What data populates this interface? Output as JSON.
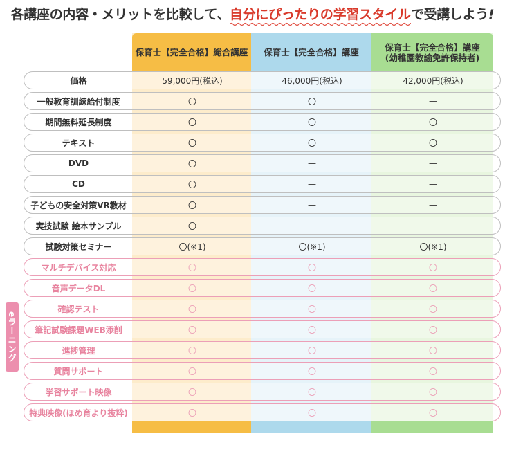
{
  "heading": {
    "prefix": "各講座の内容・メリットを比較して、",
    "highlight": "自分にぴったりの学習スタイル",
    "suffix": "で受講しよう",
    "tail": "!"
  },
  "plans": [
    {
      "line1": "保育士【完全合格】総合講座",
      "line2": ""
    },
    {
      "line1": "保育士【完全合格】講座",
      "line2": ""
    },
    {
      "line1": "保育士【完全合格】講座",
      "line2": "(幼稚園教諭免許保持者)"
    }
  ],
  "elearning_tab": "eラーニング",
  "rows": [
    {
      "label": "価格",
      "c1": "59,000円(税込)",
      "c2": "46,000円(税込)",
      "c3": "42,000円(税込)"
    },
    {
      "label": "一般教育訓練給付制度",
      "c1": "〇",
      "c2": "〇",
      "c3": "—"
    },
    {
      "label": "期間無料延長制度",
      "c1": "〇",
      "c2": "〇",
      "c3": "〇"
    },
    {
      "label": "テキスト",
      "c1": "〇",
      "c2": "〇",
      "c3": "〇"
    },
    {
      "label": "DVD",
      "c1": "〇",
      "c2": "—",
      "c3": "—"
    },
    {
      "label": "CD",
      "c1": "〇",
      "c2": "—",
      "c3": "—"
    },
    {
      "label": "子どもの安全対策VR教材",
      "c1": "〇",
      "c2": "—",
      "c3": "—"
    },
    {
      "label": "実技試験 絵本サンプル",
      "c1": "〇",
      "c2": "—",
      "c3": "—"
    },
    {
      "label": "試験対策セミナー",
      "c1": "〇(※1)",
      "c2": "〇(※1)",
      "c3": "〇(※1)"
    },
    {
      "label": "マルチデバイス対応",
      "c1": "〇",
      "c2": "〇",
      "c3": "〇"
    },
    {
      "label": "音声データDL",
      "c1": "〇",
      "c2": "〇",
      "c3": "〇"
    },
    {
      "label": "確認テスト",
      "c1": "〇",
      "c2": "〇",
      "c3": "〇"
    },
    {
      "label": "筆記試験課題WEB添削",
      "c1": "〇",
      "c2": "〇",
      "c3": "〇"
    },
    {
      "label": "進捗管理",
      "c1": "〇",
      "c2": "〇",
      "c3": "〇"
    },
    {
      "label": "質問サポート",
      "c1": "〇",
      "c2": "〇",
      "c3": "〇"
    },
    {
      "label": "学習サポート映像",
      "c1": "〇",
      "c2": "〇",
      "c3": "〇"
    },
    {
      "label": "特典映像(ほめ育より抜粋)",
      "c1": "〇",
      "c2": "〇",
      "c3": "〇"
    }
  ],
  "colors": {
    "plan1_head": "#f6bd45",
    "plan2_head": "#add9ec",
    "plan3_head": "#a8dd92",
    "elearning_accent": "#ec8fae",
    "highlight_text": "#d93a2b"
  }
}
